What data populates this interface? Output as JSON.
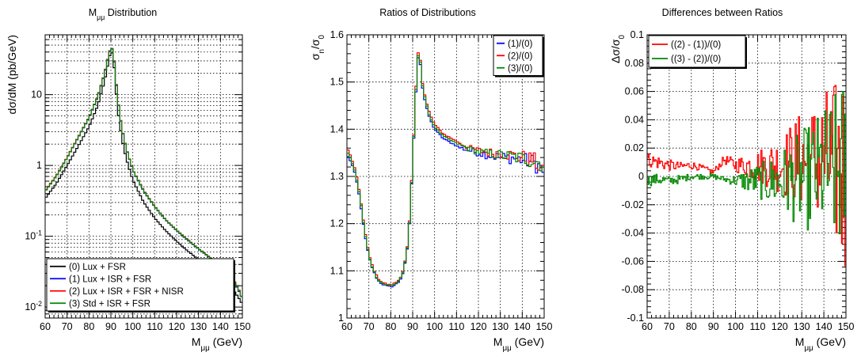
{
  "chart_data": [
    {
      "type": "line",
      "title": "M_μμ Distribution",
      "xlabel": "M_μμ (GeV)",
      "ylabel": "dσ/dM (pb/GeV)",
      "xlim": [
        60,
        150
      ],
      "ylim": [
        0.007,
        70
      ],
      "yscale": "log",
      "grid": true,
      "legend_position": "bottom",
      "x_ticks": [
        "60",
        "70",
        "80",
        "90",
        "100",
        "110",
        "120",
        "130",
        "140",
        "150"
      ],
      "y_ticks": [
        {
          "value": 0.01,
          "label": "10",
          "sup": "-2"
        },
        {
          "value": 0.1,
          "label": "10",
          "sup": "-1"
        },
        {
          "value": 1,
          "label": "1",
          "sup": ""
        },
        {
          "value": 10,
          "label": "10",
          "sup": ""
        }
      ],
      "x": [
        60,
        65,
        70,
        75,
        80,
        84,
        87,
        89,
        90,
        91,
        92,
        93,
        95,
        97,
        100,
        105,
        110,
        115,
        120,
        125,
        130,
        135,
        140,
        145,
        148,
        150
      ],
      "series": [
        {
          "name": "(0) Lux + FSR",
          "color": "#000000",
          "values": [
            0.34,
            0.55,
            1.0,
            1.85,
            3.5,
            7.0,
            15,
            30,
            42,
            36,
            16,
            6.5,
            2.4,
            1.25,
            0.62,
            0.3,
            0.18,
            0.12,
            0.085,
            0.062,
            0.047,
            0.036,
            0.027,
            0.019,
            0.014,
            0.011
          ]
        },
        {
          "name": "(1) Lux + ISR + FSR",
          "color": "#0000ff",
          "values": [
            0.43,
            0.7,
            1.28,
            2.45,
            4.7,
            9.3,
            19,
            36,
            46,
            42,
            20,
            9.0,
            3.3,
            1.72,
            0.86,
            0.43,
            0.26,
            0.17,
            0.12,
            0.088,
            0.066,
            0.05,
            0.037,
            0.026,
            0.018,
            0.013
          ]
        },
        {
          "name": "(2) Lux + ISR + FSR + NISR",
          "color": "#ff0000",
          "values": [
            0.44,
            0.71,
            1.3,
            2.5,
            4.8,
            9.5,
            19.5,
            37,
            47,
            43,
            21,
            9.2,
            3.35,
            1.75,
            0.87,
            0.44,
            0.265,
            0.172,
            0.122,
            0.09,
            0.067,
            0.051,
            0.038,
            0.027,
            0.019,
            0.013
          ]
        },
        {
          "name": "(3) Std + ISR + FSR",
          "color": "#008800",
          "values": [
            0.43,
            0.7,
            1.28,
            2.47,
            4.75,
            9.4,
            19.2,
            36.5,
            46.5,
            42.5,
            20.5,
            9.1,
            3.32,
            1.73,
            0.865,
            0.435,
            0.262,
            0.171,
            0.121,
            0.089,
            0.0665,
            0.0505,
            0.0375,
            0.0265,
            0.0185,
            0.013
          ]
        }
      ]
    },
    {
      "type": "line",
      "title": "Ratios of Distributions",
      "xlabel": "M_μμ (GeV)",
      "ylabel": "σ_n/σ_0",
      "xlim": [
        60,
        150
      ],
      "ylim": [
        1.0,
        1.6
      ],
      "grid": true,
      "legend_position": "top-right",
      "x_ticks": [
        "60",
        "70",
        "80",
        "90",
        "100",
        "110",
        "120",
        "130",
        "140",
        "150"
      ],
      "y_ticks": [
        "1",
        "1.1",
        "1.2",
        "1.3",
        "1.4",
        "1.5",
        "1.6"
      ],
      "x": [
        60,
        62,
        64,
        66,
        68,
        70,
        72,
        74,
        76,
        78,
        80,
        82,
        84,
        86,
        88,
        89,
        90,
        91,
        92,
        93,
        94,
        96,
        98,
        100,
        104,
        108,
        112,
        116,
        120,
        125,
        130,
        135,
        140,
        145,
        148,
        150
      ],
      "series": [
        {
          "name": "(1)/(0)",
          "color": "#0000ff",
          "values": [
            1.345,
            1.33,
            1.3,
            1.25,
            1.18,
            1.13,
            1.1,
            1.08,
            1.072,
            1.068,
            1.066,
            1.07,
            1.078,
            1.1,
            1.16,
            1.24,
            1.33,
            1.43,
            1.53,
            1.575,
            1.5,
            1.45,
            1.42,
            1.4,
            1.38,
            1.37,
            1.36,
            1.355,
            1.35,
            1.345,
            1.34,
            1.34,
            1.335,
            1.33,
            1.32,
            1.31
          ]
        },
        {
          "name": "(2)/(0)",
          "color": "#ff0000",
          "values": [
            1.36,
            1.34,
            1.31,
            1.26,
            1.19,
            1.135,
            1.105,
            1.085,
            1.076,
            1.072,
            1.07,
            1.074,
            1.082,
            1.105,
            1.165,
            1.245,
            1.335,
            1.44,
            1.54,
            1.585,
            1.51,
            1.46,
            1.43,
            1.41,
            1.39,
            1.38,
            1.37,
            1.36,
            1.355,
            1.35,
            1.35,
            1.345,
            1.34,
            1.335,
            1.32,
            1.3
          ]
        },
        {
          "name": "(3)/(0)",
          "color": "#008800",
          "values": [
            1.355,
            1.335,
            1.305,
            1.255,
            1.185,
            1.132,
            1.102,
            1.082,
            1.074,
            1.07,
            1.068,
            1.072,
            1.08,
            1.102,
            1.162,
            1.242,
            1.332,
            1.435,
            1.535,
            1.58,
            1.505,
            1.455,
            1.425,
            1.405,
            1.385,
            1.375,
            1.365,
            1.358,
            1.352,
            1.348,
            1.345,
            1.342,
            1.338,
            1.334,
            1.33,
            1.325
          ]
        }
      ]
    },
    {
      "type": "line",
      "title": "Differences between Ratios",
      "xlabel": "M_μμ (GeV)",
      "ylabel": "Δσ/σ_0",
      "xlim": [
        60,
        150
      ],
      "ylim": [
        -0.1,
        0.1
      ],
      "grid": true,
      "legend_position": "top-left",
      "x_ticks": [
        "60",
        "70",
        "80",
        "90",
        "100",
        "110",
        "120",
        "130",
        "140",
        "150"
      ],
      "y_ticks": [
        "-0.1",
        "-0.08",
        "-0.06",
        "-0.04",
        "-0.02",
        "0",
        "0.02",
        "0.04",
        "0.06",
        "0.08",
        "0.1"
      ],
      "x": [
        60,
        65,
        70,
        75,
        80,
        85,
        90,
        95,
        100,
        105,
        110,
        115,
        120,
        125,
        130,
        135,
        140,
        145,
        150
      ],
      "series": [
        {
          "name": "((2) - (1))/(0)",
          "color": "#ff0000",
          "values": [
            0.012,
            0.01,
            0.008,
            0.007,
            0.008,
            0.006,
            0.003,
            0.012,
            0.008,
            0.008,
            0.007,
            0.008,
            0.008,
            0.01,
            0.012,
            0.01,
            0.012,
            0.008,
            0.005
          ],
          "spread": [
            0.005,
            0.005,
            0.004,
            0.003,
            0.003,
            0.002,
            0.002,
            0.003,
            0.005,
            0.008,
            0.012,
            0.016,
            0.02,
            0.028,
            0.035,
            0.042,
            0.05,
            0.06,
            0.08
          ]
        },
        {
          "name": "((3) - (2))/(0)",
          "color": "#008800",
          "values": [
            -0.003,
            -0.002,
            -0.003,
            -0.002,
            0.0,
            0.0,
            0.0,
            -0.002,
            -0.003,
            -0.003,
            -0.003,
            -0.004,
            -0.003,
            -0.003,
            -0.002,
            0.0,
            0.004,
            0.004,
            0.005
          ],
          "spread": [
            0.004,
            0.004,
            0.003,
            0.003,
            0.002,
            0.002,
            0.002,
            0.002,
            0.004,
            0.008,
            0.012,
            0.016,
            0.022,
            0.028,
            0.035,
            0.04,
            0.045,
            0.055,
            0.07
          ]
        }
      ]
    }
  ]
}
